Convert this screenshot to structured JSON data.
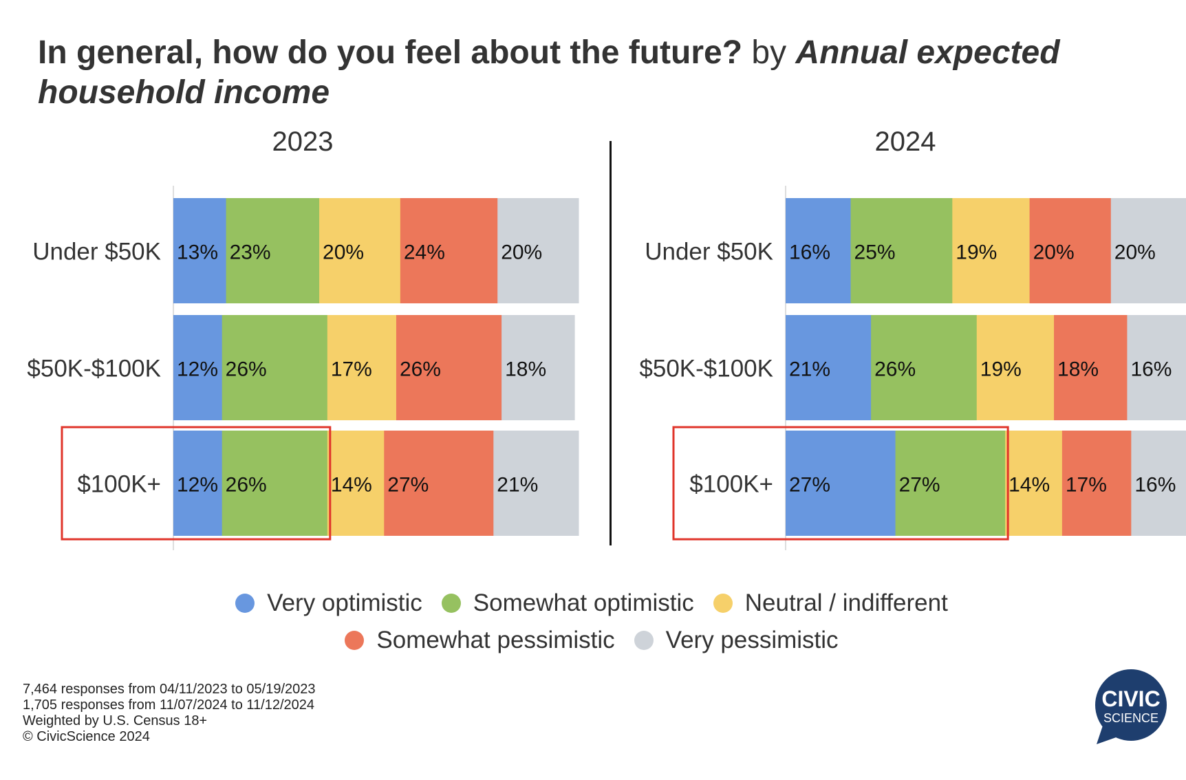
{
  "title": {
    "question": "In general, how do you feel about the future?",
    "by": "by",
    "variable": "Annual expected household income"
  },
  "legend": [
    {
      "label": "Very optimistic",
      "color": "#6897df"
    },
    {
      "label": "Somewhat optimistic",
      "color": "#96c160"
    },
    {
      "label": "Neutral / indifferent",
      "color": "#f6d06a"
    },
    {
      "label": "Somewhat pessimistic",
      "color": "#ec775a"
    },
    {
      "label": "Very pessimistic",
      "color": "#ced3d9"
    }
  ],
  "footnotes": [
    "7,464 responses from 04/11/2023 to 05/19/2023",
    "1,705 responses from 11/07/2024 to 11/12/2024",
    "Weighted by U.S. Census 18+",
    "© CivicScience 2024"
  ],
  "logo": {
    "line1": "CIVIC",
    "line2": "SCIENCE",
    "color": "#1e3e6e"
  },
  "highlight_color": "#e0352b",
  "chart_data": [
    {
      "type": "bar",
      "title": "2023",
      "orientation": "horizontal-stacked-100",
      "categories": [
        "Under $50K",
        "$50K-$100K",
        "$100K+"
      ],
      "series": [
        {
          "name": "Very optimistic",
          "values": [
            13,
            12,
            12
          ]
        },
        {
          "name": "Somewhat optimistic",
          "values": [
            23,
            26,
            26
          ]
        },
        {
          "name": "Neutral / indifferent",
          "values": [
            20,
            17,
            14
          ]
        },
        {
          "name": "Somewhat pessimistic",
          "values": [
            24,
            26,
            27
          ]
        },
        {
          "name": "Very pessimistic",
          "values": [
            20,
            18,
            21
          ]
        }
      ],
      "labels": [
        [
          "13%",
          "23%",
          "20%",
          "24%",
          "20%"
        ],
        [
          "12%",
          "26%",
          "17%",
          "26%",
          "18%"
        ],
        [
          "12%",
          "26%",
          "14%",
          "27%",
          "21%"
        ]
      ],
      "highlighted_category": "$100K+",
      "highlighted_series_count": 2,
      "xlim": [
        0,
        100
      ]
    },
    {
      "type": "bar",
      "title": "2024",
      "orientation": "horizontal-stacked-100",
      "categories": [
        "Under $50K",
        "$50K-$100K",
        "$100K+"
      ],
      "series": [
        {
          "name": "Very optimistic",
          "values": [
            16,
            21,
            27
          ]
        },
        {
          "name": "Somewhat optimistic",
          "values": [
            25,
            26,
            27
          ]
        },
        {
          "name": "Neutral / indifferent",
          "values": [
            19,
            19,
            14
          ]
        },
        {
          "name": "Somewhat pessimistic",
          "values": [
            20,
            18,
            17
          ]
        },
        {
          "name": "Very pessimistic",
          "values": [
            20,
            16,
            16
          ]
        }
      ],
      "labels": [
        [
          "16%",
          "25%",
          "19%",
          "20%",
          "20%"
        ],
        [
          "21%",
          "26%",
          "19%",
          "18%",
          "16%"
        ],
        [
          "27%",
          "27%",
          "14%",
          "17%",
          "16%"
        ]
      ],
      "highlighted_category": "$100K+",
      "highlighted_series_count": 2,
      "xlim": [
        0,
        100
      ]
    }
  ]
}
